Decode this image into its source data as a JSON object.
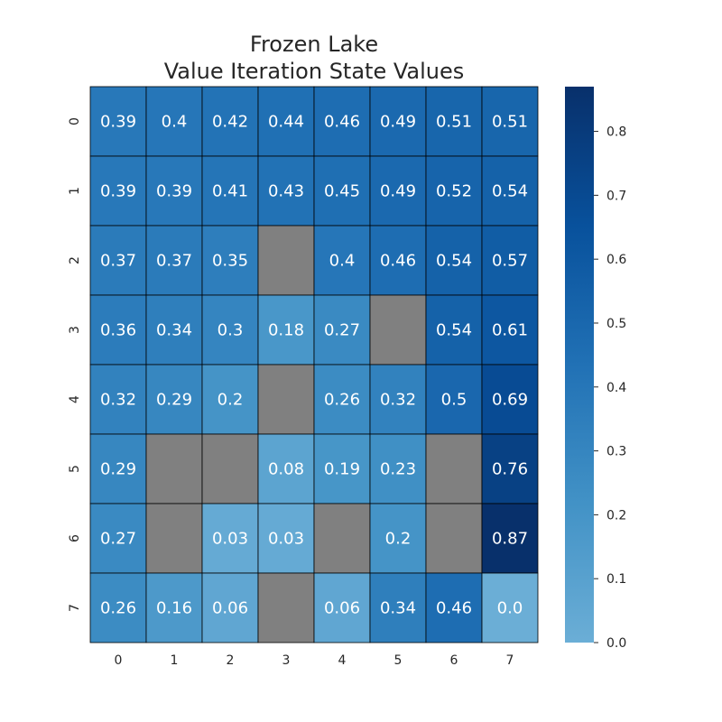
{
  "chart_data": {
    "type": "heatmap",
    "title": [
      "Frozen Lake",
      "Value Iteration State Values"
    ],
    "x_ticks": [
      "0",
      "1",
      "2",
      "3",
      "4",
      "5",
      "6",
      "7"
    ],
    "y_ticks": [
      "0",
      "1",
      "2",
      "3",
      "4",
      "5",
      "6",
      "7"
    ],
    "values": [
      [
        0.39,
        0.4,
        0.42,
        0.44,
        0.46,
        0.49,
        0.51,
        0.51
      ],
      [
        0.39,
        0.39,
        0.41,
        0.43,
        0.45,
        0.49,
        0.52,
        0.54
      ],
      [
        0.37,
        0.37,
        0.35,
        null,
        0.4,
        0.46,
        0.54,
        0.57
      ],
      [
        0.36,
        0.34,
        0.3,
        0.18,
        0.27,
        null,
        0.54,
        0.61
      ],
      [
        0.32,
        0.29,
        0.2,
        null,
        0.26,
        0.32,
        0.5,
        0.69
      ],
      [
        0.29,
        null,
        null,
        0.08,
        0.19,
        0.23,
        null,
        0.76
      ],
      [
        0.27,
        null,
        0.03,
        0.03,
        null,
        0.2,
        null,
        0.87
      ],
      [
        0.26,
        0.16,
        0.06,
        null,
        0.06,
        0.34,
        0.46,
        0.0
      ]
    ],
    "labels": [
      [
        "0.39",
        "0.4",
        "0.42",
        "0.44",
        "0.46",
        "0.49",
        "0.51",
        "0.51"
      ],
      [
        "0.39",
        "0.39",
        "0.41",
        "0.43",
        "0.45",
        "0.49",
        "0.52",
        "0.54"
      ],
      [
        "0.37",
        "0.37",
        "0.35",
        "",
        "0.4",
        "0.46",
        "0.54",
        "0.57"
      ],
      [
        "0.36",
        "0.34",
        "0.3",
        "0.18",
        "0.27",
        "",
        "0.54",
        "0.61"
      ],
      [
        "0.32",
        "0.29",
        "0.2",
        "",
        "0.26",
        "0.32",
        "0.5",
        "0.69"
      ],
      [
        "0.29",
        "",
        "",
        "0.08",
        "0.19",
        "0.23",
        "",
        "0.76"
      ],
      [
        "0.27",
        "",
        "0.03",
        "0.03",
        "",
        "0.2",
        "",
        "0.87"
      ],
      [
        "0.26",
        "0.16",
        "0.06",
        "",
        "0.06",
        "0.34",
        "0.46",
        "0.0"
      ]
    ],
    "colorbar_ticks": [
      "0.0",
      "0.1",
      "0.2",
      "0.3",
      "0.4",
      "0.5",
      "0.6",
      "0.7",
      "0.8"
    ],
    "value_range": [
      0.0,
      0.87
    ],
    "colormap": [
      "#6baed6",
      "#4292c6",
      "#2171b5",
      "#08519c",
      "#08306b"
    ],
    "missing_color": "#808080",
    "grid_color": "#000000"
  }
}
